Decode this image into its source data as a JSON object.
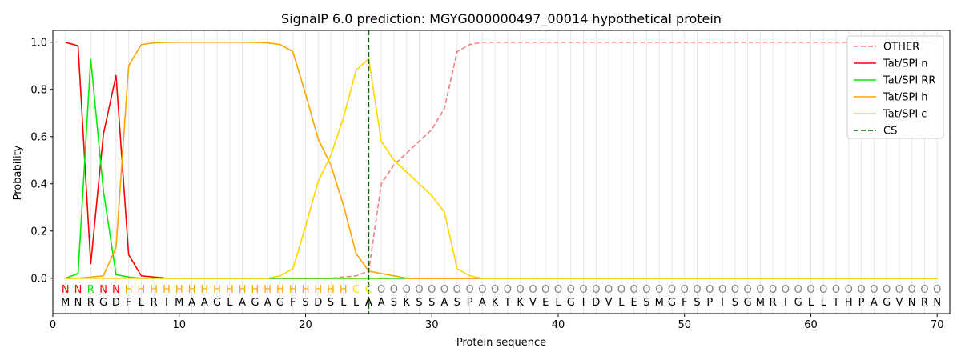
{
  "chart_data": {
    "type": "line",
    "title": "SignalP 6.0 prediction: MGYG000000497_00014 hypothetical protein",
    "xlabel": "Protein sequence",
    "ylabel": "Probability",
    "xlim": [
      0,
      71
    ],
    "ylim": [
      -0.15,
      1.05
    ],
    "x_ticks": [
      0,
      10,
      20,
      30,
      40,
      50,
      60,
      70
    ],
    "y_ticks": [
      0.0,
      0.2,
      0.4,
      0.6,
      0.8,
      1.0
    ],
    "y_tick_labels": [
      "0.0",
      "0.2",
      "0.4",
      "0.6",
      "0.8",
      "1.0"
    ],
    "grid": "vertical lines at each residue",
    "legend_position": "top-right",
    "sequence": [
      "M",
      "N",
      "R",
      "G",
      "D",
      "F",
      "L",
      "R",
      "I",
      "M",
      "A",
      "A",
      "G",
      "L",
      "A",
      "G",
      "A",
      "G",
      "F",
      "S",
      "D",
      "S",
      "L",
      "L",
      "A",
      "A",
      "S",
      "K",
      "S",
      "S",
      "A",
      "S",
      "P",
      "A",
      "K",
      "T",
      "K",
      "V",
      "E",
      "L",
      "G",
      "I",
      "D",
      "V",
      "L",
      "E",
      "S",
      "M",
      "G",
      "F",
      "S",
      "P",
      "I",
      "S",
      "G",
      "M",
      "R",
      "I",
      "G",
      "L",
      "L",
      "T",
      "H",
      "P",
      "A",
      "G",
      "V",
      "N",
      "R",
      "N"
    ],
    "predicted_labels": [
      "N",
      "N",
      "R",
      "N",
      "N",
      "H",
      "H",
      "H",
      "H",
      "H",
      "H",
      "H",
      "H",
      "H",
      "H",
      "H",
      "H",
      "H",
      "H",
      "H",
      "H",
      "H",
      "H",
      "C",
      "C",
      "O",
      "O",
      "O",
      "O",
      "O",
      "O",
      "O",
      "O",
      "O",
      "O",
      "O",
      "O",
      "O",
      "O",
      "O",
      "O",
      "O",
      "O",
      "O",
      "O",
      "O",
      "O",
      "O",
      "O",
      "O",
      "O",
      "O",
      "O",
      "O",
      "O",
      "O",
      "O",
      "O",
      "O",
      "O",
      "O",
      "O",
      "O",
      "O",
      "O",
      "O",
      "O",
      "O",
      "O",
      "O"
    ],
    "label_colors": {
      "N": "#ff0000",
      "R": "#00ee00",
      "H": "#ffa500",
      "C": "#ffd700",
      "O": "#808080"
    },
    "cleavage_site": 25,
    "series": [
      {
        "name": "OTHER",
        "color": "#f08080",
        "dash": true,
        "values": [
          0,
          0,
          0,
          0,
          0,
          0,
          0,
          0,
          0,
          0,
          0,
          0,
          0,
          0,
          0,
          0,
          0,
          0,
          0,
          0,
          0,
          0,
          0.005,
          0.01,
          0.03,
          0.4,
          0.48,
          0.53,
          0.58,
          0.63,
          0.72,
          0.96,
          0.99,
          1.0,
          1.0,
          1.0,
          1.0,
          1.0,
          1.0,
          1.0,
          1.0,
          1.0,
          1.0,
          1.0,
          1.0,
          1.0,
          1.0,
          1.0,
          1.0,
          1.0,
          1.0,
          1.0,
          1.0,
          1.0,
          1.0,
          1.0,
          1.0,
          1.0,
          1.0,
          1.0,
          1.0,
          1.0,
          1.0,
          1.0,
          1.0,
          1.0,
          1.0,
          1.0,
          1.0,
          1.0
        ]
      },
      {
        "name": "Tat/SPI n",
        "color": "#ff0000",
        "dash": false,
        "values": [
          1.0,
          0.985,
          0.06,
          0.61,
          0.86,
          0.1,
          0.01,
          0.005,
          0,
          0,
          0,
          0,
          0,
          0,
          0,
          0,
          0,
          0,
          0,
          0,
          0,
          0,
          0,
          0,
          0,
          0,
          0,
          0,
          0,
          0,
          0,
          0,
          0,
          0,
          0,
          0,
          0,
          0,
          0,
          0,
          0,
          0,
          0,
          0,
          0,
          0,
          0,
          0,
          0,
          0,
          0,
          0,
          0,
          0,
          0,
          0,
          0,
          0,
          0,
          0,
          0,
          0,
          0,
          0,
          0,
          0,
          0,
          0,
          0,
          0
        ]
      },
      {
        "name": "Tat/SPI RR",
        "color": "#00ee00",
        "dash": false,
        "values": [
          0,
          0.02,
          0.93,
          0.37,
          0.015,
          0.005,
          0,
          0,
          0,
          0,
          0,
          0,
          0,
          0,
          0,
          0,
          0,
          0,
          0,
          0,
          0,
          0,
          0,
          0,
          0,
          0,
          0,
          0,
          0,
          0,
          0,
          0,
          0,
          0,
          0,
          0,
          0,
          0,
          0,
          0,
          0,
          0,
          0,
          0,
          0,
          0,
          0,
          0,
          0,
          0,
          0,
          0,
          0,
          0,
          0,
          0,
          0,
          0,
          0,
          0,
          0,
          0,
          0,
          0,
          0,
          0,
          0,
          0,
          0,
          0
        ]
      },
      {
        "name": "Tat/SPI h",
        "color": "#ffa500",
        "dash": false,
        "values": [
          0,
          0,
          0.005,
          0.01,
          0.13,
          0.9,
          0.99,
          0.997,
          0.999,
          1.0,
          1.0,
          1.0,
          1.0,
          1.0,
          1.0,
          0.999,
          0.997,
          0.99,
          0.96,
          0.78,
          0.59,
          0.48,
          0.31,
          0.105,
          0.03,
          0.02,
          0.01,
          0,
          0,
          0,
          0,
          0,
          0,
          0,
          0,
          0,
          0,
          0,
          0,
          0,
          0,
          0,
          0,
          0,
          0,
          0,
          0,
          0,
          0,
          0,
          0,
          0,
          0,
          0,
          0,
          0,
          0,
          0,
          0,
          0,
          0,
          0,
          0,
          0,
          0,
          0,
          0,
          0,
          0,
          0
        ]
      },
      {
        "name": "Tat/SPI c",
        "color": "#ffd700",
        "dash": false,
        "values": [
          0,
          0,
          0,
          0,
          0,
          0,
          0,
          0,
          0,
          0,
          0,
          0,
          0,
          0,
          0,
          0,
          0,
          0.01,
          0.04,
          0.22,
          0.41,
          0.52,
          0.68,
          0.88,
          0.93,
          0.58,
          0.5,
          0.45,
          0.4,
          0.35,
          0.28,
          0.04,
          0.01,
          0,
          0,
          0,
          0,
          0,
          0,
          0,
          0,
          0,
          0,
          0,
          0,
          0,
          0,
          0,
          0,
          0,
          0,
          0,
          0,
          0,
          0,
          0,
          0,
          0,
          0,
          0,
          0,
          0,
          0,
          0,
          0,
          0,
          0,
          0,
          0,
          0
        ]
      }
    ],
    "cs_legend_label": "CS",
    "cs_color": "#006400"
  }
}
